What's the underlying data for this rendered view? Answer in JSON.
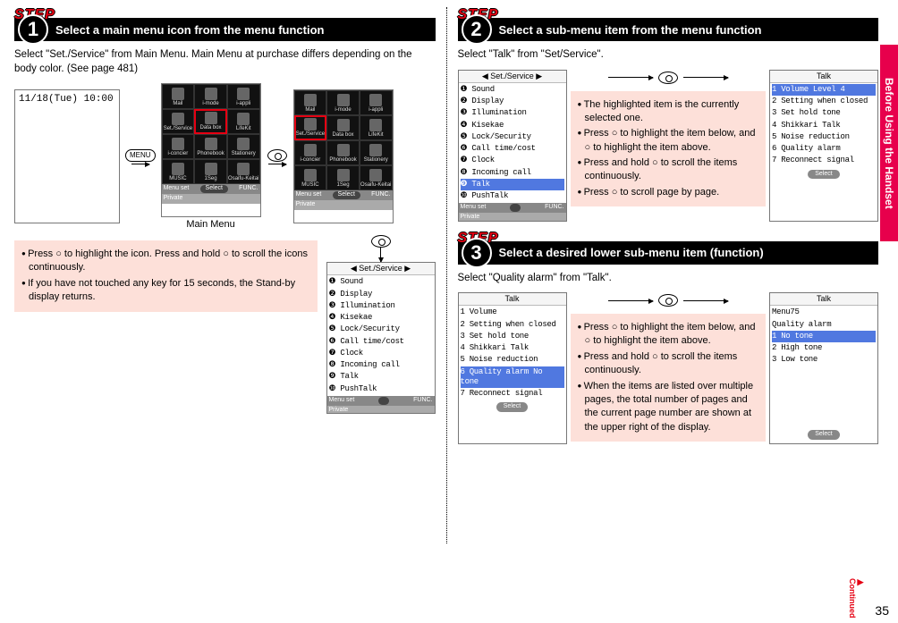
{
  "accent_color": "#e50012",
  "note_bg": "#fde0d9",
  "side_tab": "Before Using the Handset",
  "page_number": "35",
  "continued": "Continued",
  "step1": {
    "label": "STEP",
    "num": "1",
    "title": "Select a main menu icon from the menu function",
    "body": "Select \"Set./Service\" from Main Menu. Main Menu at purchase differs depending on the body color. (See page 481)",
    "standby_time": "11/18(Tue) 10:00",
    "menu_btn": "MENU",
    "caption": "Main Menu",
    "grid_labels": [
      "Mail",
      "i-mode",
      "i-appli",
      "Set./Service",
      "Data box",
      "LifeKit",
      "i-concier",
      "Phonebook",
      "Stationery",
      "MUSIC",
      "1Seg",
      "Osaifu-Keitai"
    ],
    "footer": {
      "left": "Menu set",
      "mid": "Select",
      "right": "FUNC.",
      "bl": "Private"
    },
    "note1": "Press ○ to highlight the icon. Press and hold ○ to scroll the icons continuously.",
    "note2": "If you have not touched any key for 15 seconds, the Stand-by display returns.",
    "service_header": "◀   Set./Service   ▶",
    "service_items": [
      "❶ Sound",
      "❷ Display",
      "❸ Illumination",
      "❹ Kisekae",
      "❺ Lock/Security",
      "❻ Call time/cost",
      "❼ Clock",
      "❽ Incoming call",
      "❾ Talk",
      "❿ PushTalk"
    ]
  },
  "step2": {
    "label": "STEP",
    "num": "2",
    "title": "Select a sub-menu item from the menu function",
    "body": "Select \"Talk\" from \"Set/Service\".",
    "left_header": "◀   Set./Service   ▶",
    "left_items": [
      "❶ Sound",
      "❷ Display",
      "❸ Illumination",
      "❹ Kisekae",
      "❺ Lock/Security",
      "❻ Call time/cost",
      "❼ Clock",
      "❽ Incoming call",
      "❾ Talk",
      "❿ PushTalk"
    ],
    "left_highlight_index": 8,
    "note1": "The highlighted item is the currently selected one.",
    "note2": "Press ○ to highlight the item below, and ○ to highlight the item above.",
    "note3": "Press and hold ○ to scroll the items continuously.",
    "note4": "Press ○ to scroll page by page.",
    "right_header": "Talk",
    "right_items": [
      "1 Volume           Level 4",
      "2 Setting when closed",
      "3 Set hold tone",
      "4 Shikkari Talk",
      "5 Noise reduction",
      "6 Quality alarm",
      "7 Reconnect signal"
    ],
    "right_highlight_index": 0
  },
  "step3": {
    "label": "STEP",
    "num": "3",
    "title": "Select a desired lower sub-menu item (function)",
    "body": "Select \"Quality alarm\" from \"Talk\".",
    "left_header": "Talk",
    "left_items": [
      "1 Volume",
      "2 Setting when closed",
      "3 Set hold tone",
      "4 Shikkari Talk",
      "5 Noise reduction",
      "6 Quality alarm       No tone",
      "7 Reconnect signal"
    ],
    "left_highlight_index": 5,
    "note1": "Press ○ to highlight the item below, and ○ to highlight the item above.",
    "note2": "Press and hold ○ to scroll the items continuously.",
    "note3": "When the items are listed over multiple pages, the total number of pages and the current page number are shown at the upper right of the display.",
    "right_header": "Talk",
    "right_sub1": "Menu75",
    "right_sub2": "Quality alarm",
    "right_items": [
      "1 No tone",
      "2 High tone",
      "3 Low tone"
    ],
    "right_highlight_index": 0
  }
}
